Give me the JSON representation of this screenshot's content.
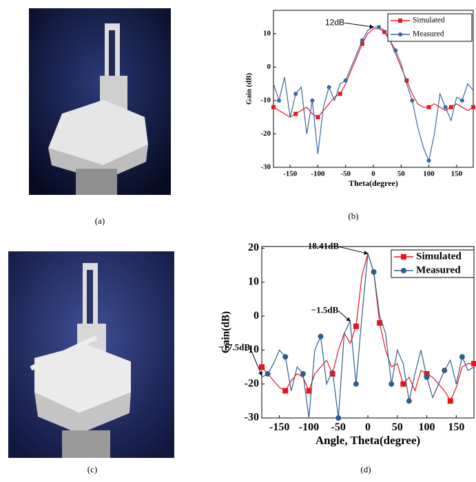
{
  "panels": [
    "(a)",
    "(b)",
    "(c)",
    "(d)"
  ],
  "chart_data": [
    {
      "type": "line",
      "ylabel": "Gain (dB)",
      "xlabel": "Theta(degree)",
      "x": [
        -180,
        -170,
        -160,
        -150,
        -140,
        -130,
        -120,
        -110,
        -100,
        -90,
        -80,
        -70,
        -60,
        -50,
        -40,
        -30,
        -20,
        -10,
        0,
        10,
        20,
        30,
        40,
        50,
        60,
        70,
        80,
        90,
        100,
        110,
        120,
        130,
        140,
        150,
        160,
        170,
        180
      ],
      "series": [
        {
          "name": "Simulated",
          "color": "#e8141c",
          "marker": "square",
          "values": [
            -12,
            -13,
            -14,
            -15,
            -14,
            -13,
            -12,
            -14,
            -15,
            -13,
            -11,
            -9,
            -8,
            -5,
            -1,
            3,
            7,
            10,
            11.5,
            11.5,
            10.5,
            8,
            4,
            0,
            -4,
            -8,
            -11,
            -12,
            -12,
            -11,
            -12,
            -13,
            -12,
            -11,
            -12,
            -13,
            -12
          ]
        },
        {
          "name": "Measured",
          "color": "#3a66a0",
          "marker": "circle",
          "values": [
            -5,
            -10,
            -3,
            -15,
            -8,
            -6,
            -20,
            -10,
            -26,
            -12,
            -6,
            -10,
            -5,
            -4,
            0,
            4,
            8,
            11,
            12,
            12,
            11,
            8,
            5,
            1,
            -5,
            -10,
            -18,
            -24,
            -28,
            -20,
            -8,
            -12,
            -16,
            -9,
            -10,
            -5,
            -7
          ]
        }
      ],
      "xlim": [
        -180,
        180
      ],
      "ylim": [
        -30,
        17
      ],
      "xticks": [
        -150,
        -100,
        -50,
        0,
        50,
        100,
        150
      ],
      "yticks": [
        -30,
        -20,
        -10,
        0,
        10
      ],
      "annotations": [
        {
          "text": "12dB",
          "x": 0,
          "y": 12
        }
      ],
      "legend": "upper right"
    },
    {
      "type": "line",
      "ylabel": "Gain(dB)",
      "xlabel": "Angle, Theta(degree)",
      "x": [
        -180,
        -170,
        -160,
        -150,
        -140,
        -130,
        -120,
        -110,
        -100,
        -90,
        -80,
        -70,
        -60,
        -50,
        -40,
        -30,
        -20,
        -10,
        0,
        10,
        20,
        30,
        40,
        50,
        60,
        70,
        80,
        90,
        100,
        110,
        120,
        130,
        140,
        150,
        160,
        170,
        180
      ],
      "series": [
        {
          "name": "Simulated",
          "color": "#e8141c",
          "marker": "square",
          "values": [
            -15,
            -17,
            -19,
            -21,
            -22,
            -19,
            -17,
            -18,
            -22,
            -17,
            -15,
            -13,
            -17,
            -10,
            -5,
            -8,
            -3,
            12,
            18.41,
            13,
            -2,
            -10,
            -15,
            -14,
            -20,
            -18,
            -22,
            -16,
            -17,
            -18,
            -20,
            -22,
            -25,
            -21,
            -15,
            -14,
            -14
          ]
        },
        {
          "name": "Measured",
          "color": "#2f5d8a",
          "marker": "circle",
          "values": [
            -18,
            -17,
            -14,
            -10,
            -12,
            -22,
            -15,
            -17,
            -30,
            -10,
            -6,
            -20,
            -16,
            -30,
            -5,
            -1.5,
            -20,
            0,
            18.41,
            13,
            0,
            -5,
            -20,
            -10,
            -14,
            -25,
            -17,
            -10,
            -18,
            -24,
            -20,
            -16,
            -13,
            -20,
            -12,
            -16,
            -15
          ]
        }
      ],
      "xlim": [
        -180,
        180
      ],
      "ylim": [
        -30,
        20.5
      ],
      "xticks": [
        -150,
        -100,
        -50,
        0,
        50,
        100,
        150
      ],
      "yticks": [
        -30,
        -20,
        -10,
        0,
        10,
        20
      ],
      "annotations": [
        {
          "text": "18.41dB",
          "x": 0,
          "y": 18.41
        },
        {
          "text": "−1.5dB",
          "x": -30,
          "y": -1.5
        },
        {
          "text": "−17.5dB",
          "x": -180,
          "y": -17.5
        }
      ],
      "legend": "upper right"
    }
  ]
}
